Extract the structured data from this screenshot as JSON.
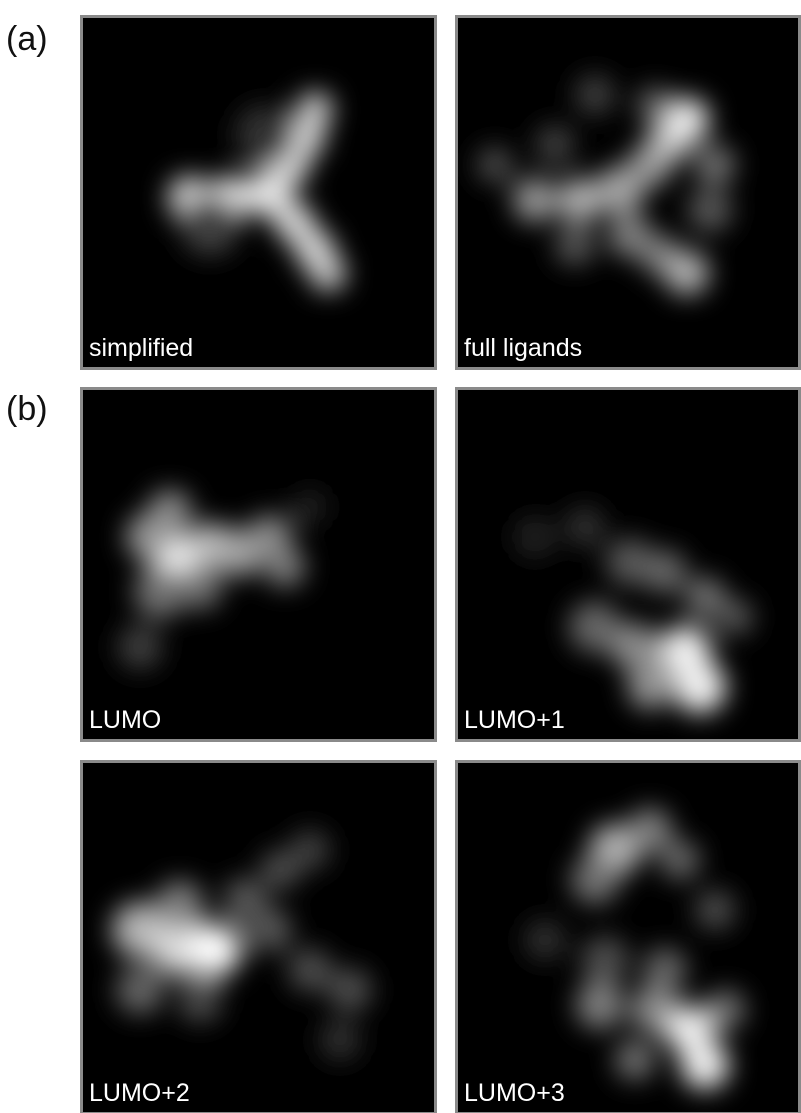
{
  "parts": [
    {
      "label": "(a)",
      "panels": [
        "simplified",
        "full ligands"
      ]
    },
    {
      "label": "(b)",
      "panels": [
        "LUMO",
        "LUMO+1",
        "LUMO+2",
        "LUMO+3"
      ]
    }
  ]
}
